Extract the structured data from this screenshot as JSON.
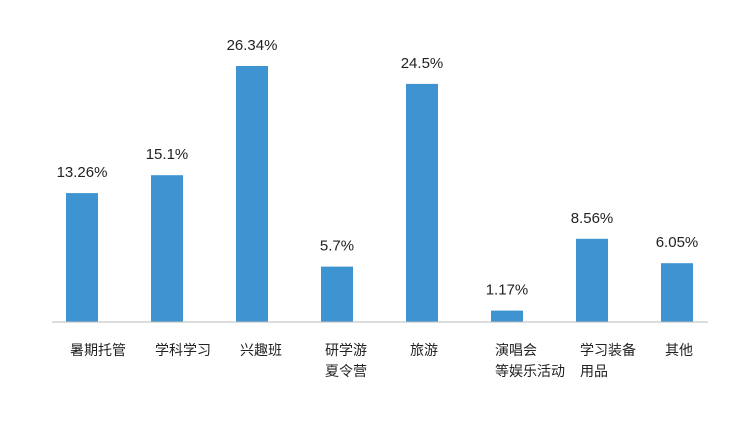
{
  "chart_data": {
    "type": "bar",
    "title": "",
    "xlabel": "",
    "ylabel": "",
    "ylim": [
      0,
      28
    ],
    "grid": false,
    "legend": "none",
    "bar_color": "#3d94d0",
    "axis_color": "#bbbbbb",
    "categories": [
      [
        "暑期托管"
      ],
      [
        "学科学习"
      ],
      [
        "兴趣班"
      ],
      [
        "研学游",
        "夏令营"
      ],
      [
        "旅游"
      ],
      [
        "演唱会",
        "等娱乐活动"
      ],
      [
        "学习装备",
        "用品"
      ],
      [
        "其他"
      ]
    ],
    "values": [
      13.26,
      15.1,
      26.34,
      5.7,
      24.5,
      1.17,
      8.56,
      6.05
    ],
    "value_labels": [
      "13.26%",
      "15.1%",
      "26.34%",
      "5.7%",
      "24.5%",
      "1.17%",
      "8.56%",
      "6.05%"
    ]
  }
}
